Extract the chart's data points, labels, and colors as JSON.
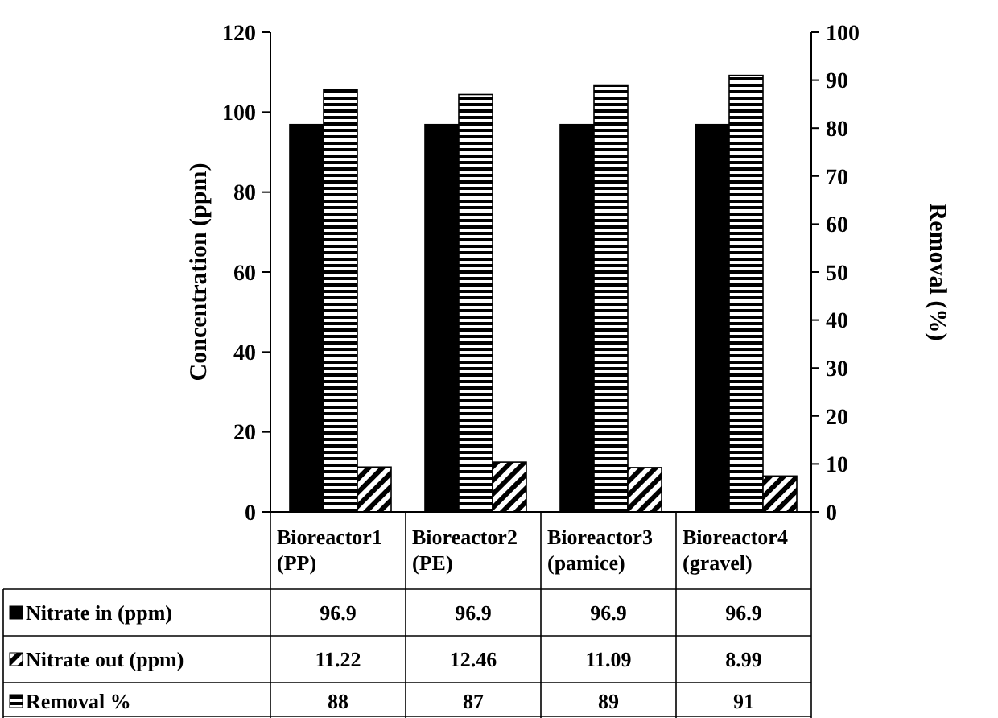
{
  "chart_data": {
    "type": "bar",
    "ylabel": "Concentration (ppm)",
    "y2label": "Removal (%)",
    "categories": [
      "Bioreactor1 (PP)",
      "Bioreactor2 (PE)",
      "Bioreactor3 (pamice)",
      "Bioreactor4 (gravel)"
    ],
    "series": [
      {
        "name": "Nitrate in (ppm)",
        "color": "#000000",
        "values": [
          96.9,
          96.9,
          96.9,
          96.9
        ]
      },
      {
        "name": "Nitrate out (ppm)",
        "color": "#000000",
        "values": [
          11.22,
          12.46,
          11.09,
          8.99
        ]
      },
      {
        "name": "Removal %",
        "color": "#000000",
        "axis": "y2",
        "values": [
          88,
          87,
          89,
          91
        ]
      }
    ],
    "ylim": [
      0,
      120
    ],
    "yticks": [
      0,
      20,
      40,
      60,
      80,
      100,
      120
    ],
    "y2lim": [
      0,
      100
    ],
    "y2ticks": [
      0,
      10,
      20,
      30,
      40,
      50,
      60,
      70,
      80,
      90,
      100
    ],
    "grid": false,
    "legend": "bottom",
    "data_labels": true
  }
}
